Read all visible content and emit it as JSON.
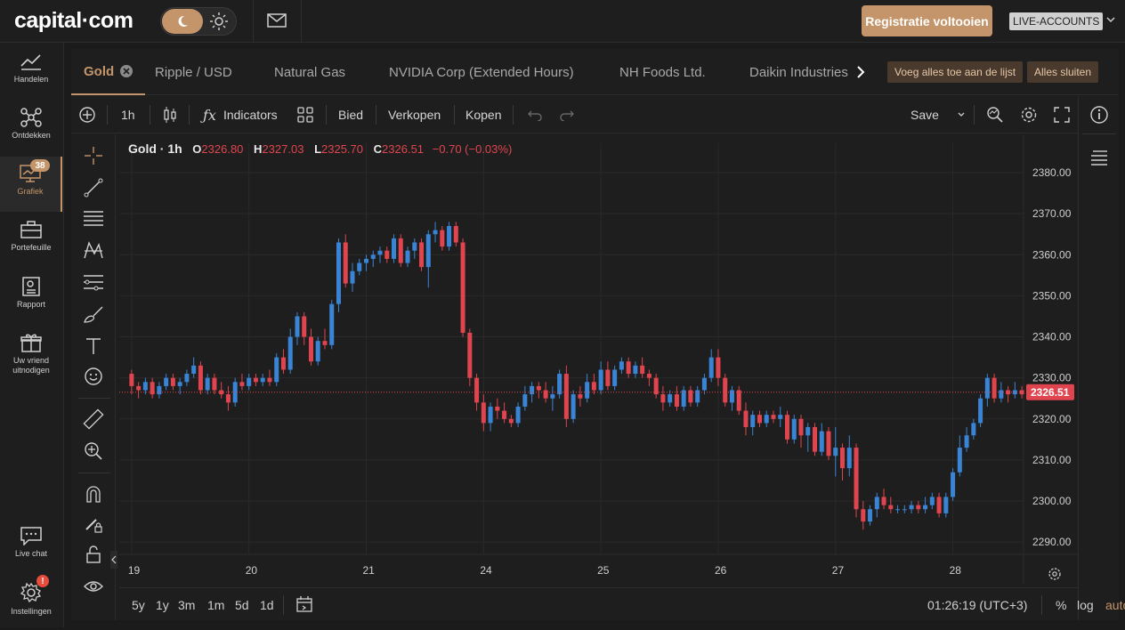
{
  "topbar": {
    "logo": "capital·com",
    "register_label": "Registratie voltooien",
    "account_label": "LIVE-ACCOUNTS"
  },
  "sidebar": {
    "items": [
      {
        "label": "Handelen"
      },
      {
        "label": "Ontdekken"
      },
      {
        "label": "Grafiek",
        "badge": "38"
      },
      {
        "label": "Portefeuille"
      },
      {
        "label": "Rapport"
      },
      {
        "label": "Uw vriend uitnodigen"
      }
    ],
    "live_chat": "Live chat",
    "settings": "Instellingen",
    "settings_badge": "!"
  },
  "tabs": {
    "items": [
      "Gold",
      "Ripple / USD",
      "Natural Gas",
      "NVIDIA Corp (Extended Hours)",
      "NH Foods Ltd.",
      "Daikin Industries"
    ],
    "add_all_label": "Voeg alles toe aan de lijst",
    "close_all_label": "Alles sluiten"
  },
  "toolbar": {
    "interval": "1h",
    "indicators": "Indicators",
    "bid": "Bied",
    "sell": "Verkopen",
    "buy": "Kopen",
    "save": "Save"
  },
  "legend": {
    "symbol": "Gold · 1h",
    "o_label": "O",
    "o": "2326.80",
    "h_label": "H",
    "h": "2327.03",
    "l_label": "L",
    "l": "2325.70",
    "c_label": "C",
    "c": "2326.51",
    "change": "−0.70 (−0.03%)"
  },
  "chart_data": {
    "type": "candlestick",
    "y_ticks": [
      "2380.00",
      "2370.00",
      "2360.00",
      "2350.00",
      "2340.00",
      "2330.00",
      "2320.00",
      "2310.00",
      "2300.00",
      "2290.00"
    ],
    "ylim": [
      2287,
      2385
    ],
    "x_ticks": [
      "19",
      "20",
      "21",
      "24",
      "25",
      "26",
      "27",
      "28"
    ],
    "last_price": "2326.51",
    "last_value": 2326.51,
    "colors": {
      "up": "#3a84d6",
      "down": "#e0454f",
      "grid": "#2a2a2a",
      "price_tag": "#e0454f"
    },
    "candles": [
      [
        2331,
        2332,
        2326,
        2328
      ],
      [
        2328,
        2329,
        2325,
        2327
      ],
      [
        2327,
        2330,
        2326,
        2329
      ],
      [
        2329,
        2330,
        2325,
        2326
      ],
      [
        2326,
        2329,
        2325,
        2328
      ],
      [
        2328,
        2331,
        2327,
        2330
      ],
      [
        2330,
        2331,
        2327,
        2328
      ],
      [
        2328,
        2330,
        2326,
        2329
      ],
      [
        2329,
        2332,
        2328,
        2331
      ],
      [
        2331,
        2335,
        2330,
        2333
      ],
      [
        2333,
        2334,
        2326,
        2327
      ],
      [
        2327,
        2331,
        2326,
        2330
      ],
      [
        2330,
        2331,
        2326,
        2327
      ],
      [
        2327,
        2329,
        2325,
        2326
      ],
      [
        2326,
        2328,
        2322,
        2324
      ],
      [
        2324,
        2330,
        2323,
        2329
      ],
      [
        2329,
        2331,
        2327,
        2328
      ],
      [
        2328,
        2331,
        2327,
        2330
      ],
      [
        2330,
        2331,
        2328,
        2329
      ],
      [
        2329,
        2331,
        2328,
        2330
      ],
      [
        2330,
        2332,
        2328,
        2329
      ],
      [
        2329,
        2336,
        2328,
        2335
      ],
      [
        2335,
        2337,
        2331,
        2332
      ],
      [
        2332,
        2342,
        2331,
        2340
      ],
      [
        2340,
        2346,
        2338,
        2345
      ],
      [
        2345,
        2346,
        2338,
        2340
      ],
      [
        2340,
        2342,
        2333,
        2334
      ],
      [
        2334,
        2340,
        2333,
        2339
      ],
      [
        2339,
        2342,
        2337,
        2338
      ],
      [
        2338,
        2349,
        2337,
        2348
      ],
      [
        2348,
        2364,
        2346,
        2363
      ],
      [
        2363,
        2365,
        2352,
        2353
      ],
      [
        2353,
        2358,
        2351,
        2356
      ],
      [
        2356,
        2359,
        2355,
        2358
      ],
      [
        2358,
        2360,
        2356,
        2359
      ],
      [
        2359,
        2361,
        2357,
        2360
      ],
      [
        2360,
        2362,
        2358,
        2361
      ],
      [
        2361,
        2362,
        2358,
        2359
      ],
      [
        2359,
        2365,
        2358,
        2364
      ],
      [
        2364,
        2365,
        2357,
        2358
      ],
      [
        2358,
        2362,
        2357,
        2361
      ],
      [
        2361,
        2364,
        2359,
        2363
      ],
      [
        2363,
        2364,
        2356,
        2357
      ],
      [
        2357,
        2366,
        2352,
        2365
      ],
      [
        2365,
        2368,
        2363,
        2366
      ],
      [
        2366,
        2367,
        2361,
        2362
      ],
      [
        2362,
        2368,
        2361,
        2367
      ],
      [
        2367,
        2368,
        2362,
        2363
      ],
      [
        2363,
        2364,
        2340,
        2341
      ],
      [
        2341,
        2342,
        2328,
        2330
      ],
      [
        2330,
        2331,
        2322,
        2324
      ],
      [
        2324,
        2326,
        2317,
        2319
      ],
      [
        2319,
        2324,
        2317,
        2323
      ],
      [
        2323,
        2325,
        2320,
        2322
      ],
      [
        2322,
        2324,
        2319,
        2320
      ],
      [
        2320,
        2321,
        2318,
        2319
      ],
      [
        2319,
        2324,
        2318,
        2323
      ],
      [
        2323,
        2328,
        2322,
        2326
      ],
      [
        2326,
        2329,
        2324,
        2328
      ],
      [
        2328,
        2329,
        2325,
        2327
      ],
      [
        2327,
        2329,
        2324,
        2325
      ],
      [
        2325,
        2328,
        2322,
        2326
      ],
      [
        2326,
        2332,
        2325,
        2331
      ],
      [
        2331,
        2333,
        2318,
        2320
      ],
      [
        2320,
        2327,
        2319,
        2326
      ],
      [
        2326,
        2328,
        2323,
        2325
      ],
      [
        2325,
        2331,
        2324,
        2329
      ],
      [
        2329,
        2331,
        2326,
        2327
      ],
      [
        2327,
        2334,
        2326,
        2332
      ],
      [
        2332,
        2334,
        2327,
        2328
      ],
      [
        2328,
        2333,
        2327,
        2332
      ],
      [
        2332,
        2335,
        2331,
        2334
      ],
      [
        2334,
        2335,
        2330,
        2331
      ],
      [
        2331,
        2334,
        2330,
        2333
      ],
      [
        2333,
        2335,
        2330,
        2331
      ],
      [
        2331,
        2332,
        2328,
        2330
      ],
      [
        2330,
        2331,
        2325,
        2326
      ],
      [
        2326,
        2328,
        2322,
        2324
      ],
      [
        2324,
        2327,
        2323,
        2326
      ],
      [
        2326,
        2328,
        2322,
        2323
      ],
      [
        2323,
        2328,
        2322,
        2327
      ],
      [
        2327,
        2328,
        2323,
        2324
      ],
      [
        2324,
        2328,
        2323,
        2327
      ],
      [
        2327,
        2331,
        2326,
        2330
      ],
      [
        2330,
        2337,
        2329,
        2335
      ],
      [
        2335,
        2337,
        2328,
        2330
      ],
      [
        2330,
        2331,
        2323,
        2324
      ],
      [
        2324,
        2328,
        2322,
        2327
      ],
      [
        2327,
        2328,
        2321,
        2322
      ],
      [
        2322,
        2324,
        2316,
        2318
      ],
      [
        2318,
        2322,
        2316,
        2321
      ],
      [
        2321,
        2322,
        2318,
        2319
      ],
      [
        2319,
        2322,
        2318,
        2321
      ],
      [
        2321,
        2322,
        2319,
        2320
      ],
      [
        2320,
        2323,
        2318,
        2321
      ],
      [
        2321,
        2322,
        2314,
        2315
      ],
      [
        2315,
        2321,
        2314,
        2320
      ],
      [
        2320,
        2321,
        2313,
        2316
      ],
      [
        2316,
        2319,
        2312,
        2318
      ],
      [
        2318,
        2319,
        2311,
        2312
      ],
      [
        2312,
        2319,
        2311,
        2317
      ],
      [
        2317,
        2318,
        2310,
        2311
      ],
      [
        2311,
        2318,
        2306,
        2313
      ],
      [
        2313,
        2314,
        2305,
        2308
      ],
      [
        2308,
        2316,
        2306,
        2313
      ],
      [
        2313,
        2314,
        2296,
        2298
      ],
      [
        2298,
        2300,
        2293,
        2295
      ],
      [
        2295,
        2299,
        2294,
        2298
      ],
      [
        2298,
        2302,
        2296,
        2301
      ],
      [
        2301,
        2303,
        2298,
        2299
      ],
      [
        2299,
        2301,
        2297,
        2298
      ],
      [
        2298,
        2299,
        2297,
        2298
      ],
      [
        2298,
        2299,
        2297,
        2298
      ],
      [
        2298,
        2300,
        2297,
        2299
      ],
      [
        2299,
        2300,
        2297,
        2298
      ],
      [
        2298,
        2301,
        2297,
        2299
      ],
      [
        2299,
        2302,
        2298,
        2301
      ],
      [
        2301,
        2302,
        2296,
        2297
      ],
      [
        2297,
        2302,
        2296,
        2301
      ],
      [
        2301,
        2308,
        2300,
        2307
      ],
      [
        2307,
        2316,
        2306,
        2313
      ],
      [
        2313,
        2318,
        2312,
        2316
      ],
      [
        2316,
        2320,
        2315,
        2319
      ],
      [
        2319,
        2326,
        2318,
        2325
      ],
      [
        2325,
        2331,
        2323,
        2330
      ],
      [
        2330,
        2331,
        2324,
        2325
      ],
      [
        2325,
        2329,
        2324,
        2327
      ],
      [
        2327,
        2328,
        2324,
        2326
      ],
      [
        2326,
        2329,
        2325,
        2327
      ],
      [
        2327,
        2328,
        2325,
        2326
      ]
    ]
  },
  "rangebar": {
    "ranges": [
      "5y",
      "1y",
      "3m",
      "1m",
      "5d",
      "1d"
    ],
    "time": "01:26:19 (UTC+3)",
    "pct": "%",
    "log": "log",
    "auto": "auto"
  }
}
